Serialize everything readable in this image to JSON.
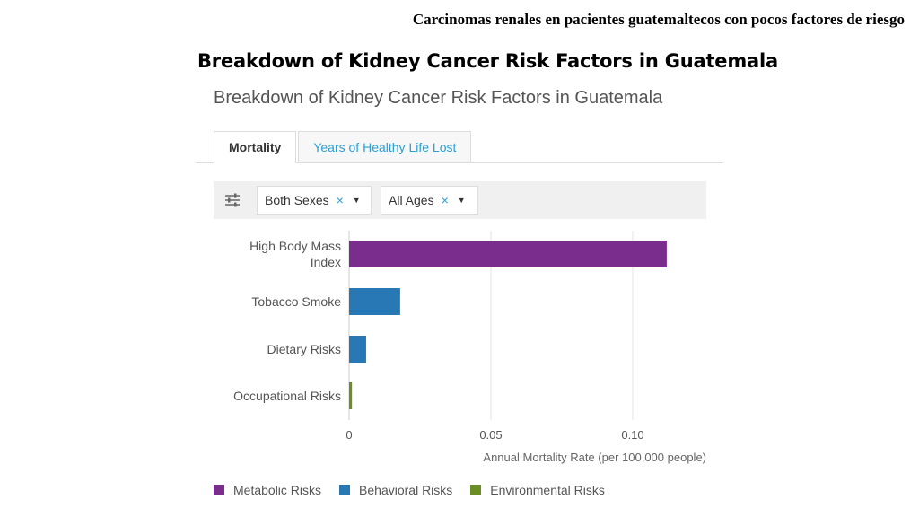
{
  "header": {
    "text": "Carcinomas renales en pacientes guatemaltecos con pocos factores de riesgo"
  },
  "slide_title": "Breakdown of Kidney Cancer Risk Factors in Guatemala",
  "chart_title": "Breakdown of Kidney Cancer Risk Factors in Guatemala",
  "tabs": [
    {
      "label": "Mortality",
      "active": true
    },
    {
      "label": "Years of Healthy Life Lost",
      "active": false
    }
  ],
  "filters": {
    "sex": {
      "value": "Both Sexes",
      "clear": "×"
    },
    "age": {
      "value": "All Ages",
      "clear": "×"
    }
  },
  "chart_data": {
    "type": "bar",
    "orientation": "horizontal",
    "title": "Breakdown of Kidney Cancer Risk Factors in Guatemala",
    "xlabel": "Annual Mortality Rate (per 100,000 people)",
    "ylabel": "",
    "xlim": [
      0,
      0.125
    ],
    "xticks": [
      0,
      0.05,
      0.1
    ],
    "xtick_labels": [
      "0",
      "0.05",
      "0.10"
    ],
    "grid": true,
    "legend_placement": "bottom",
    "categories": [
      {
        "label_lines": [
          "High Body Mass",
          "Index"
        ],
        "value": 0.112,
        "group": "Metabolic Risks"
      },
      {
        "label_lines": [
          "Tobacco Smoke"
        ],
        "value": 0.018,
        "group": "Behavioral Risks"
      },
      {
        "label_lines": [
          "Dietary Risks"
        ],
        "value": 0.006,
        "group": "Behavioral Risks"
      },
      {
        "label_lines": [
          "Occupational Risks"
        ],
        "value": 0.001,
        "group": "Environmental Risks"
      }
    ],
    "legend": [
      {
        "name": "Metabolic Risks",
        "color": "#7b2d8e"
      },
      {
        "name": "Behavioral Risks",
        "color": "#2878b5"
      },
      {
        "name": "Environmental Risks",
        "color": "#6a8e23"
      }
    ]
  }
}
